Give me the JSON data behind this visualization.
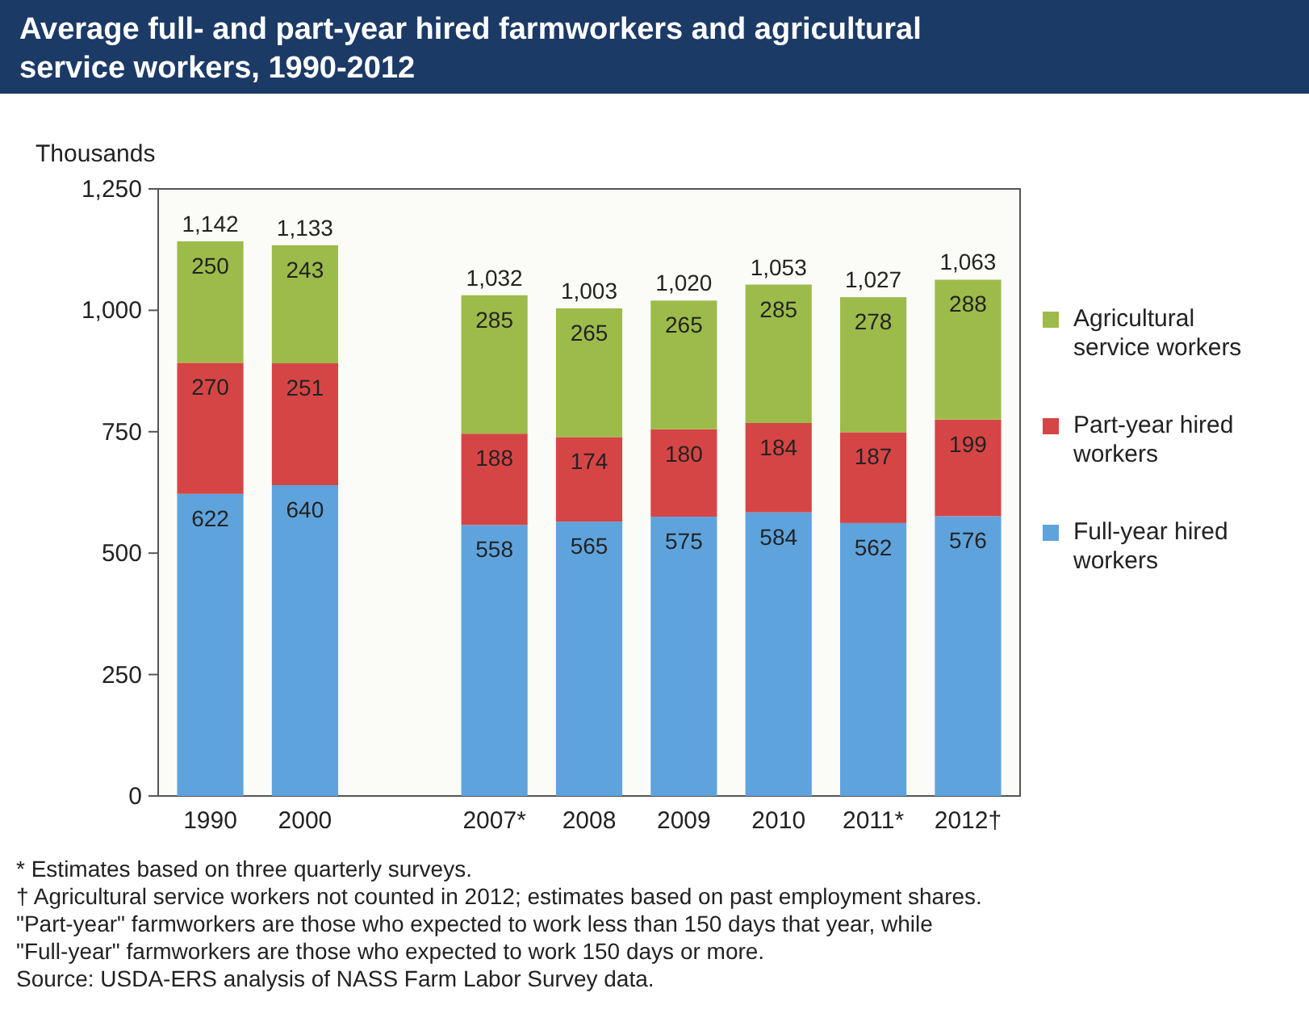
{
  "chart_data": {
    "type": "bar",
    "stacked": true,
    "title": "Average full- and part-year hired farmworkers and agricultural service workers, 1990-2012",
    "ylabel": "Thousands",
    "categories": [
      "1990",
      "2000",
      null,
      "2007*",
      "2008",
      "2009",
      "2010",
      "2011*",
      "2012†"
    ],
    "series": [
      {
        "name": "Full-year hired workers",
        "color": "#5fa3dd",
        "values": [
          622,
          640,
          null,
          558,
          565,
          575,
          584,
          562,
          576
        ]
      },
      {
        "name": "Part-year hired workers",
        "color": "#d64545",
        "values": [
          270,
          251,
          null,
          188,
          174,
          180,
          184,
          187,
          199
        ]
      },
      {
        "name": "Agricultural service workers",
        "color": "#9dbb4a",
        "values": [
          250,
          243,
          null,
          285,
          265,
          265,
          285,
          278,
          288
        ]
      }
    ],
    "totals": [
      "1,142",
      "1,133",
      null,
      "1,032",
      "1,003",
      "1,020",
      "1,053",
      "1,027",
      "1,063"
    ],
    "data_labels": true,
    "ylim": [
      0,
      1250
    ],
    "yticks": [
      0,
      {
        "value": 250,
        "label": "250"
      },
      {
        "value": 500,
        "label": "500"
      },
      {
        "value": 750,
        "label": "750"
      },
      {
        "value": 1000,
        "label": "1,000"
      },
      {
        "value": 1250,
        "label": "1,250"
      }
    ],
    "legend": "right",
    "annotations": [
      "* Estimates based on three quarterly surveys.",
      "† Agricultural service workers not counted in 2012; estimates based on past employment shares.",
      "\"Part-year\" farmworkers are those who expected to work less than 150 days that year, while",
      "\"Full-year\" farmworkers are those who expected to work 150 days or more.",
      "Source: USDA-ERS analysis of NASS Farm Labor Survey data."
    ]
  }
}
